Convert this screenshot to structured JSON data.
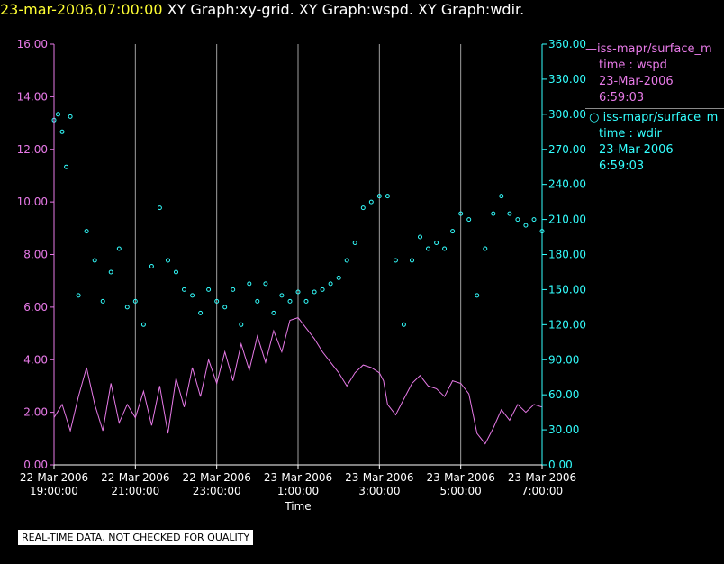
{
  "header": {
    "date_label": "23-mar-2006,07:00:00",
    "graphs_label": "XY Graph:xy-grid.  XY Graph:wspd.  XY Graph:wdir."
  },
  "legend": {
    "wspd": {
      "name": "iss-mapr/surface_m",
      "var": "time : wspd",
      "date": "23-Mar-2006",
      "time": "6:59:03"
    },
    "wdir": {
      "name": "iss-mapr/surface_m",
      "var": "time : wdir",
      "date": "23-Mar-2006",
      "time": "6:59:03"
    }
  },
  "footer": {
    "quality_note": "REAL-TIME DATA, NOT CHECKED FOR QUALITY"
  },
  "colors": {
    "wspd": "#e87ae8",
    "wdir": "#33ffff",
    "grid": "#a0a0a0",
    "axis_text": "#ffffff"
  },
  "chart_data": {
    "type": "line",
    "xlabel": "Time",
    "x_range_hours": [
      19.0,
      31.0
    ],
    "x_ticks": [
      {
        "x": 19,
        "date": "22-Mar-2006",
        "time": "19:00:00"
      },
      {
        "x": 21,
        "date": "22-Mar-2006",
        "time": "21:00:00"
      },
      {
        "x": 23,
        "date": "22-Mar-2006",
        "time": "23:00:00"
      },
      {
        "x": 25,
        "date": "23-Mar-2006",
        "time": "1:00:00"
      },
      {
        "x": 27,
        "date": "23-Mar-2006",
        "time": "3:00:00"
      },
      {
        "x": 29,
        "date": "23-Mar-2006",
        "time": "5:00:00"
      },
      {
        "x": 31,
        "date": "23-Mar-2006",
        "time": "7:00:00"
      }
    ],
    "left_axis": {
      "series": "wspd",
      "ylim": [
        0,
        16
      ],
      "ticks": [
        "0.00",
        "2.00",
        "4.00",
        "6.00",
        "8.00",
        "10.00",
        "12.00",
        "14.00",
        "16.00"
      ]
    },
    "right_axis": {
      "series": "wdir",
      "ylim": [
        0,
        360
      ],
      "ticks": [
        "0.00",
        "30.00",
        "60.00",
        "90.00",
        "120.00",
        "150.00",
        "180.00",
        "210.00",
        "240.00",
        "270.00",
        "300.00",
        "330.00",
        "360.00"
      ]
    },
    "grid": "vertical",
    "series": [
      {
        "name": "iss-mapr/surface_m : wspd",
        "axis": "left",
        "style": "line",
        "points": [
          [
            19.0,
            1.8
          ],
          [
            19.2,
            2.3
          ],
          [
            19.4,
            1.3
          ],
          [
            19.6,
            2.6
          ],
          [
            19.8,
            3.7
          ],
          [
            20.0,
            2.3
          ],
          [
            20.2,
            1.3
          ],
          [
            20.4,
            3.1
          ],
          [
            20.6,
            1.6
          ],
          [
            20.8,
            2.3
          ],
          [
            21.0,
            1.8
          ],
          [
            21.2,
            2.8
          ],
          [
            21.4,
            1.5
          ],
          [
            21.6,
            3.0
          ],
          [
            21.8,
            1.2
          ],
          [
            22.0,
            3.3
          ],
          [
            22.2,
            2.2
          ],
          [
            22.4,
            3.7
          ],
          [
            22.6,
            2.6
          ],
          [
            22.8,
            4.0
          ],
          [
            23.0,
            3.1
          ],
          [
            23.2,
            4.3
          ],
          [
            23.4,
            3.2
          ],
          [
            23.6,
            4.6
          ],
          [
            23.8,
            3.6
          ],
          [
            24.0,
            4.9
          ],
          [
            24.2,
            3.9
          ],
          [
            24.4,
            5.1
          ],
          [
            24.6,
            4.3
          ],
          [
            24.8,
            5.5
          ],
          [
            25.0,
            5.6
          ],
          [
            25.2,
            5.2
          ],
          [
            25.4,
            4.8
          ],
          [
            25.6,
            4.3
          ],
          [
            25.8,
            3.9
          ],
          [
            26.0,
            3.5
          ],
          [
            26.2,
            3.0
          ],
          [
            26.4,
            3.5
          ],
          [
            26.6,
            3.8
          ],
          [
            26.8,
            3.7
          ],
          [
            27.0,
            3.5
          ],
          [
            27.1,
            3.2
          ],
          [
            27.2,
            2.3
          ],
          [
            27.4,
            1.9
          ],
          [
            27.6,
            2.5
          ],
          [
            27.8,
            3.1
          ],
          [
            28.0,
            3.4
          ],
          [
            28.2,
            3.0
          ],
          [
            28.4,
            2.9
          ],
          [
            28.6,
            2.6
          ],
          [
            28.8,
            3.2
          ],
          [
            29.0,
            3.1
          ],
          [
            29.2,
            2.7
          ],
          [
            29.4,
            1.2
          ],
          [
            29.6,
            0.8
          ],
          [
            29.8,
            1.4
          ],
          [
            30.0,
            2.1
          ],
          [
            30.2,
            1.7
          ],
          [
            30.4,
            2.3
          ],
          [
            30.6,
            2.0
          ],
          [
            30.8,
            2.3
          ],
          [
            31.0,
            2.2
          ]
        ]
      },
      {
        "name": "iss-mapr/surface_m : wdir",
        "axis": "right",
        "style": "points",
        "points": [
          [
            19.0,
            295
          ],
          [
            19.1,
            300
          ],
          [
            19.2,
            285
          ],
          [
            19.3,
            255
          ],
          [
            19.4,
            298
          ],
          [
            19.6,
            145
          ],
          [
            19.8,
            200
          ],
          [
            20.0,
            175
          ],
          [
            20.2,
            140
          ],
          [
            20.4,
            165
          ],
          [
            20.6,
            185
          ],
          [
            20.8,
            135
          ],
          [
            21.0,
            140
          ],
          [
            21.2,
            120
          ],
          [
            21.4,
            170
          ],
          [
            21.6,
            220
          ],
          [
            21.8,
            175
          ],
          [
            22.0,
            165
          ],
          [
            22.2,
            150
          ],
          [
            22.4,
            145
          ],
          [
            22.6,
            130
          ],
          [
            22.8,
            150
          ],
          [
            23.0,
            140
          ],
          [
            23.2,
            135
          ],
          [
            23.4,
            150
          ],
          [
            23.6,
            120
          ],
          [
            23.8,
            155
          ],
          [
            24.0,
            140
          ],
          [
            24.2,
            155
          ],
          [
            24.4,
            130
          ],
          [
            24.6,
            145
          ],
          [
            24.8,
            140
          ],
          [
            25.0,
            148
          ],
          [
            25.2,
            140
          ],
          [
            25.4,
            148
          ],
          [
            25.6,
            150
          ],
          [
            25.8,
            155
          ],
          [
            26.0,
            160
          ],
          [
            26.2,
            175
          ],
          [
            26.4,
            190
          ],
          [
            26.6,
            220
          ],
          [
            26.8,
            225
          ],
          [
            27.0,
            230
          ],
          [
            27.2,
            230
          ],
          [
            27.4,
            175
          ],
          [
            27.6,
            120
          ],
          [
            27.8,
            175
          ],
          [
            28.0,
            195
          ],
          [
            28.2,
            185
          ],
          [
            28.4,
            190
          ],
          [
            28.6,
            185
          ],
          [
            28.8,
            200
          ],
          [
            29.0,
            215
          ],
          [
            29.2,
            210
          ],
          [
            29.4,
            145
          ],
          [
            29.6,
            185
          ],
          [
            29.8,
            215
          ],
          [
            30.0,
            230
          ],
          [
            30.2,
            215
          ],
          [
            30.4,
            210
          ],
          [
            30.6,
            205
          ],
          [
            30.8,
            210
          ],
          [
            31.0,
            200
          ]
        ]
      }
    ]
  }
}
